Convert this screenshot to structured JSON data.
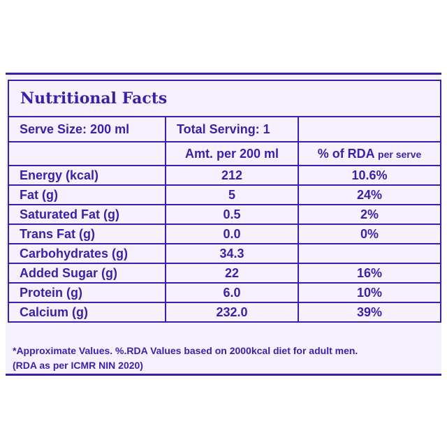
{
  "title": "Nutritional Facts",
  "serve_size": "Serve Size: 200 ml",
  "total_serving": "Total Serving: 1",
  "col_amount": "Amt. per 200 ml",
  "col_rda": "% of RDA",
  "col_rda_suffix": "per serve",
  "rows": [
    {
      "name": "Energy (kcal)",
      "amount": "212",
      "rda": "10.6%"
    },
    {
      "name": "Fat (g)",
      "amount": "5",
      "rda": "24%"
    },
    {
      "name": "Saturated Fat (g)",
      "amount": "0.5",
      "rda": "2%"
    },
    {
      "name": "Trans Fat (g)",
      "amount": "0.0",
      "rda": "0%"
    },
    {
      "name": "Carbohydrates (g)",
      "amount": "34.3",
      "rda": ""
    },
    {
      "name": "Added Sugar (g)",
      "amount": "22",
      "rda": "16%"
    },
    {
      "name": "Protein (g)",
      "amount": "6.0",
      "rda": "10%"
    },
    {
      "name": "Calcium (g)",
      "amount": "232.0",
      "rda": "39%"
    }
  ],
  "footnote_line1": "*Approximate Values. %.RDA Values based on 2000kcal diet for adult men.",
  "footnote_line2": "(RDA as per ICMR NIN 2020)",
  "colors": {
    "accent": "#3d1ea8",
    "panel_bg": "#f6f2fd"
  }
}
